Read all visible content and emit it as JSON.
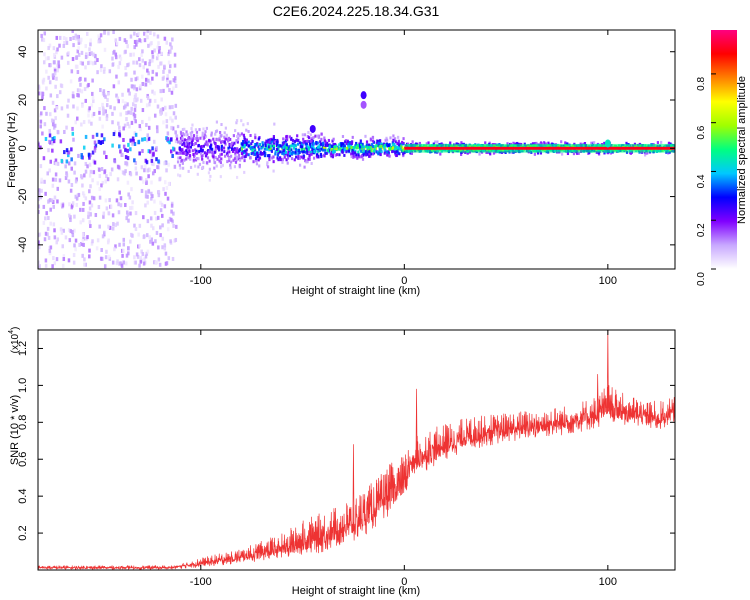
{
  "figure_title": "C2E6.2024.225.18.34.G31",
  "chart_data": [
    {
      "type": "heatmap",
      "title": "C2E6.2024.225.18.34.G31",
      "xlabel": "Height of straight line (km)",
      "ylabel": "Frequency (Hz)",
      "xlim": [
        -180,
        133
      ],
      "ylim": [
        -50,
        49
      ],
      "x_ticks": [
        -100,
        0,
        100
      ],
      "y_ticks": [
        -40,
        -20,
        0,
        20,
        40
      ],
      "grid": false,
      "colorbar": {
        "label": "Normalized spectral amplitude",
        "range": [
          0.0,
          0.98
        ],
        "ticks": [
          0.0,
          0.2,
          0.4,
          0.6,
          0.8
        ],
        "colormap": [
          "#ffffff",
          "#c8a8ff",
          "#8000ff",
          "#0000ff",
          "#00c8ff",
          "#00ff80",
          "#a0ff00",
          "#ffff00",
          "#ff8000",
          "#ff0000",
          "#ff0080"
        ]
      },
      "description_of_data": [
        {
          "x_range": [
            -180,
            -112
          ],
          "freq_spread_hz": 49,
          "amplitude": 0.1,
          "style": "scattered noise"
        },
        {
          "x_range": [
            -112,
            -80
          ],
          "freq_spread_hz": 8,
          "amplitude": 0.3
        },
        {
          "x_range": [
            -80,
            -40
          ],
          "freq_spread_hz": 5,
          "amplitude": 0.55
        },
        {
          "x_range": [
            -40,
            0
          ],
          "freq_spread_hz": 3,
          "amplitude": 0.7
        },
        {
          "x_range": [
            0,
            133
          ],
          "freq_spread_hz": 1.5,
          "amplitude": 0.92,
          "style": "narrow line at 0 Hz"
        }
      ],
      "features": [
        {
          "x": -20,
          "y": 22,
          "amplitude": 0.25
        },
        {
          "x": -20,
          "y": 18,
          "amplitude": 0.15
        },
        {
          "x": -45,
          "y": 8,
          "amplitude": 0.25
        },
        {
          "x": 100,
          "y": 2,
          "amplitude": 0.45
        }
      ]
    },
    {
      "type": "line",
      "xlabel": "Height of straight line (km)",
      "ylabel": "SNR (10 * v/v)",
      "y_multiplier": "(x10",
      "y_multiplier_exp": "4",
      "xlim": [
        -180,
        133
      ],
      "ylim": [
        0.0,
        1.3
      ],
      "x_ticks": [
        -100,
        0,
        100
      ],
      "y_ticks": [
        0.2,
        0.4,
        0.6,
        0.8,
        1.0,
        1.2
      ],
      "grid": false,
      "color": "#ee3333",
      "envelope": {
        "x": [
          -180,
          -140,
          -115,
          -100,
          -80,
          -60,
          -50,
          -40,
          -25,
          -15,
          -5,
          0,
          3,
          10,
          20,
          30,
          50,
          80,
          95,
          100,
          105,
          115,
          125,
          133
        ],
        "base": [
          0.01,
          0.01,
          0.01,
          0.03,
          0.06,
          0.1,
          0.13,
          0.16,
          0.22,
          0.3,
          0.4,
          0.44,
          0.55,
          0.6,
          0.65,
          0.7,
          0.74,
          0.78,
          0.82,
          0.86,
          0.84,
          0.82,
          0.8,
          0.84
        ],
        "spread": [
          0.02,
          0.02,
          0.02,
          0.05,
          0.08,
          0.14,
          0.2,
          0.22,
          0.24,
          0.26,
          0.28,
          0.26,
          0.22,
          0.22,
          0.2,
          0.18,
          0.16,
          0.16,
          0.18,
          0.22,
          0.18,
          0.16,
          0.16,
          0.14
        ]
      },
      "peaks": [
        {
          "x": 100,
          "y": 1.3
        },
        {
          "x": 95,
          "y": 1.06
        },
        {
          "x": -25,
          "y": 0.68
        },
        {
          "x": 6,
          "y": 0.98
        }
      ]
    }
  ]
}
